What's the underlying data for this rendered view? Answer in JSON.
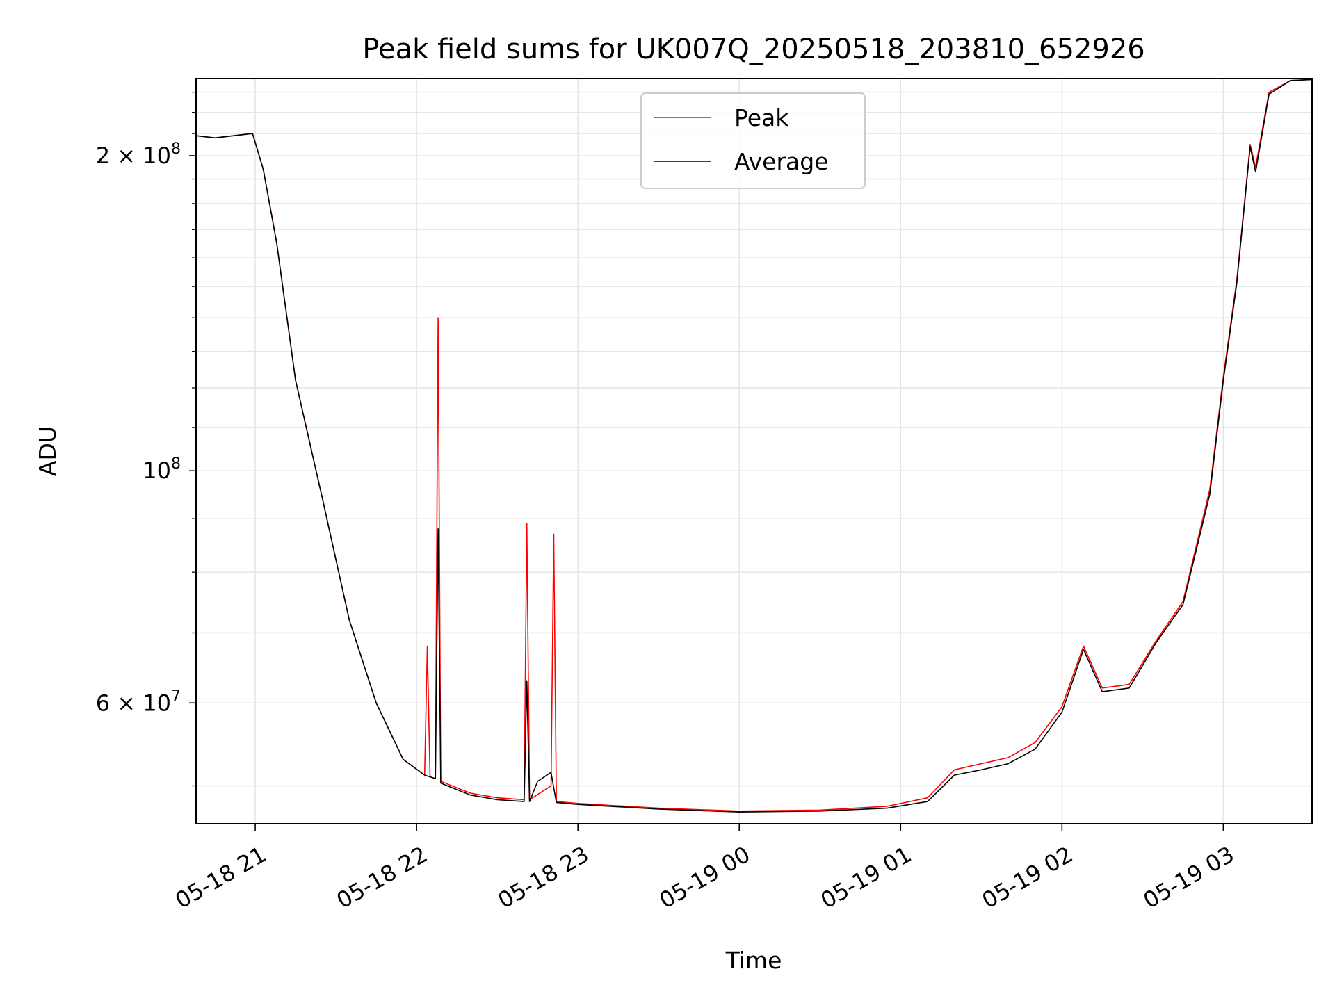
{
  "chart_data": {
    "type": "line",
    "title": "Peak field sums for UK007Q_20250518_203810_652926",
    "xlabel": "Time",
    "ylabel": "ADU",
    "y_scale": "log",
    "grid": true,
    "legend_position": "upper-center",
    "xlim": [
      "05-18 20:38",
      "05-19 03:33"
    ],
    "ylim": [
      46000000,
      237000000
    ],
    "x_ticks": [
      "05-18 21",
      "05-18 22",
      "05-18 23",
      "05-19 00",
      "05-19 01",
      "05-19 02",
      "05-19 03"
    ],
    "y_ticks": [
      {
        "value": 200000000,
        "mantissa": "2",
        "base": "10",
        "exp": "8"
      },
      {
        "value": 100000000,
        "mantissa": "",
        "base": "10",
        "exp": "8"
      },
      {
        "value": 60000000,
        "mantissa": "6",
        "base": "10",
        "exp": "7"
      }
    ],
    "series": [
      {
        "name": "Peak",
        "color": "#ff0000",
        "points": [
          [
            "05-18 20:38",
            209000000
          ],
          [
            "05-18 20:45",
            208000000
          ],
          [
            "05-18 20:52",
            209000000
          ],
          [
            "05-18 20:59",
            210000000
          ],
          [
            "05-18 21:03",
            194000000
          ],
          [
            "05-18 21:08",
            165000000
          ],
          [
            "05-18 21:15",
            122000000
          ],
          [
            "05-18 21:25",
            94000000
          ],
          [
            "05-18 21:35",
            72000000
          ],
          [
            "05-18 21:45",
            60000000
          ],
          [
            "05-18 21:55",
            53000000
          ],
          [
            "05-18 22:03",
            51200000
          ],
          [
            "05-18 22:04",
            68000000
          ],
          [
            "05-18 22:05",
            51000000
          ],
          [
            "05-18 22:07",
            50800000
          ],
          [
            "05-18 22:08",
            140000000
          ],
          [
            "05-18 22:09",
            50500000
          ],
          [
            "05-18 22:20",
            49200000
          ],
          [
            "05-18 22:30",
            48700000
          ],
          [
            "05-18 22:40",
            48500000
          ],
          [
            "05-18 22:41",
            89000000
          ],
          [
            "05-18 22:42",
            48500000
          ],
          [
            "05-18 22:50",
            50000000
          ],
          [
            "05-18 22:51",
            87000000
          ],
          [
            "05-18 22:52",
            48300000
          ],
          [
            "05-18 23:00",
            48100000
          ],
          [
            "05-18 23:30",
            47600000
          ],
          [
            "05-19 00:00",
            47300000
          ],
          [
            "05-19 00:30",
            47400000
          ],
          [
            "05-19 00:55",
            47800000
          ],
          [
            "05-19 01:10",
            48700000
          ],
          [
            "05-19 01:20",
            51800000
          ],
          [
            "05-19 01:30",
            52500000
          ],
          [
            "05-19 01:40",
            53200000
          ],
          [
            "05-19 01:50",
            55000000
          ],
          [
            "05-19 02:00",
            59500000
          ],
          [
            "05-19 02:08",
            68000000
          ],
          [
            "05-19 02:15",
            62000000
          ],
          [
            "05-19 02:25",
            62500000
          ],
          [
            "05-19 02:35",
            68800000
          ],
          [
            "05-19 02:45",
            75000000
          ],
          [
            "05-19 02:55",
            96000000
          ],
          [
            "05-19 03:00",
            123000000
          ],
          [
            "05-19 03:05",
            152000000
          ],
          [
            "05-19 03:10",
            205000000
          ],
          [
            "05-19 03:12",
            195000000
          ],
          [
            "05-19 03:17",
            230000000
          ],
          [
            "05-19 03:25",
            236000000
          ],
          [
            "05-19 03:33",
            236500000
          ]
        ]
      },
      {
        "name": "Average",
        "color": "#000000",
        "points": [
          [
            "05-18 20:38",
            209000000
          ],
          [
            "05-18 20:45",
            208000000
          ],
          [
            "05-18 20:52",
            209000000
          ],
          [
            "05-18 20:59",
            210000000
          ],
          [
            "05-18 21:03",
            194000000
          ],
          [
            "05-18 21:08",
            165000000
          ],
          [
            "05-18 21:15",
            122000000
          ],
          [
            "05-18 21:25",
            94000000
          ],
          [
            "05-18 21:35",
            72000000
          ],
          [
            "05-18 21:45",
            60000000
          ],
          [
            "05-18 21:55",
            53000000
          ],
          [
            "05-18 22:03",
            51200000
          ],
          [
            "05-18 22:07",
            50800000
          ],
          [
            "05-18 22:08",
            88000000
          ],
          [
            "05-18 22:09",
            50300000
          ],
          [
            "05-18 22:20",
            49000000
          ],
          [
            "05-18 22:30",
            48500000
          ],
          [
            "05-18 22:40",
            48300000
          ],
          [
            "05-18 22:41",
            63000000
          ],
          [
            "05-18 22:42",
            48300000
          ],
          [
            "05-18 22:45",
            50500000
          ],
          [
            "05-18 22:50",
            51500000
          ],
          [
            "05-18 22:52",
            48200000
          ],
          [
            "05-18 23:00",
            48000000
          ],
          [
            "05-18 23:30",
            47500000
          ],
          [
            "05-19 00:00",
            47200000
          ],
          [
            "05-19 00:30",
            47300000
          ],
          [
            "05-19 00:55",
            47600000
          ],
          [
            "05-19 01:10",
            48300000
          ],
          [
            "05-19 01:20",
            51200000
          ],
          [
            "05-19 01:30",
            51800000
          ],
          [
            "05-19 01:40",
            52500000
          ],
          [
            "05-19 01:50",
            54200000
          ],
          [
            "05-19 02:00",
            58800000
          ],
          [
            "05-19 02:08",
            67500000
          ],
          [
            "05-19 02:15",
            61500000
          ],
          [
            "05-19 02:25",
            62000000
          ],
          [
            "05-19 02:35",
            68500000
          ],
          [
            "05-19 02:45",
            74500000
          ],
          [
            "05-19 02:55",
            95000000
          ],
          [
            "05-19 03:00",
            122000000
          ],
          [
            "05-19 03:05",
            151000000
          ],
          [
            "05-19 03:10",
            204000000
          ],
          [
            "05-19 03:12",
            193000000
          ],
          [
            "05-19 03:17",
            229000000
          ],
          [
            "05-19 03:25",
            236000000
          ],
          [
            "05-19 03:33",
            236500000
          ]
        ]
      }
    ]
  }
}
